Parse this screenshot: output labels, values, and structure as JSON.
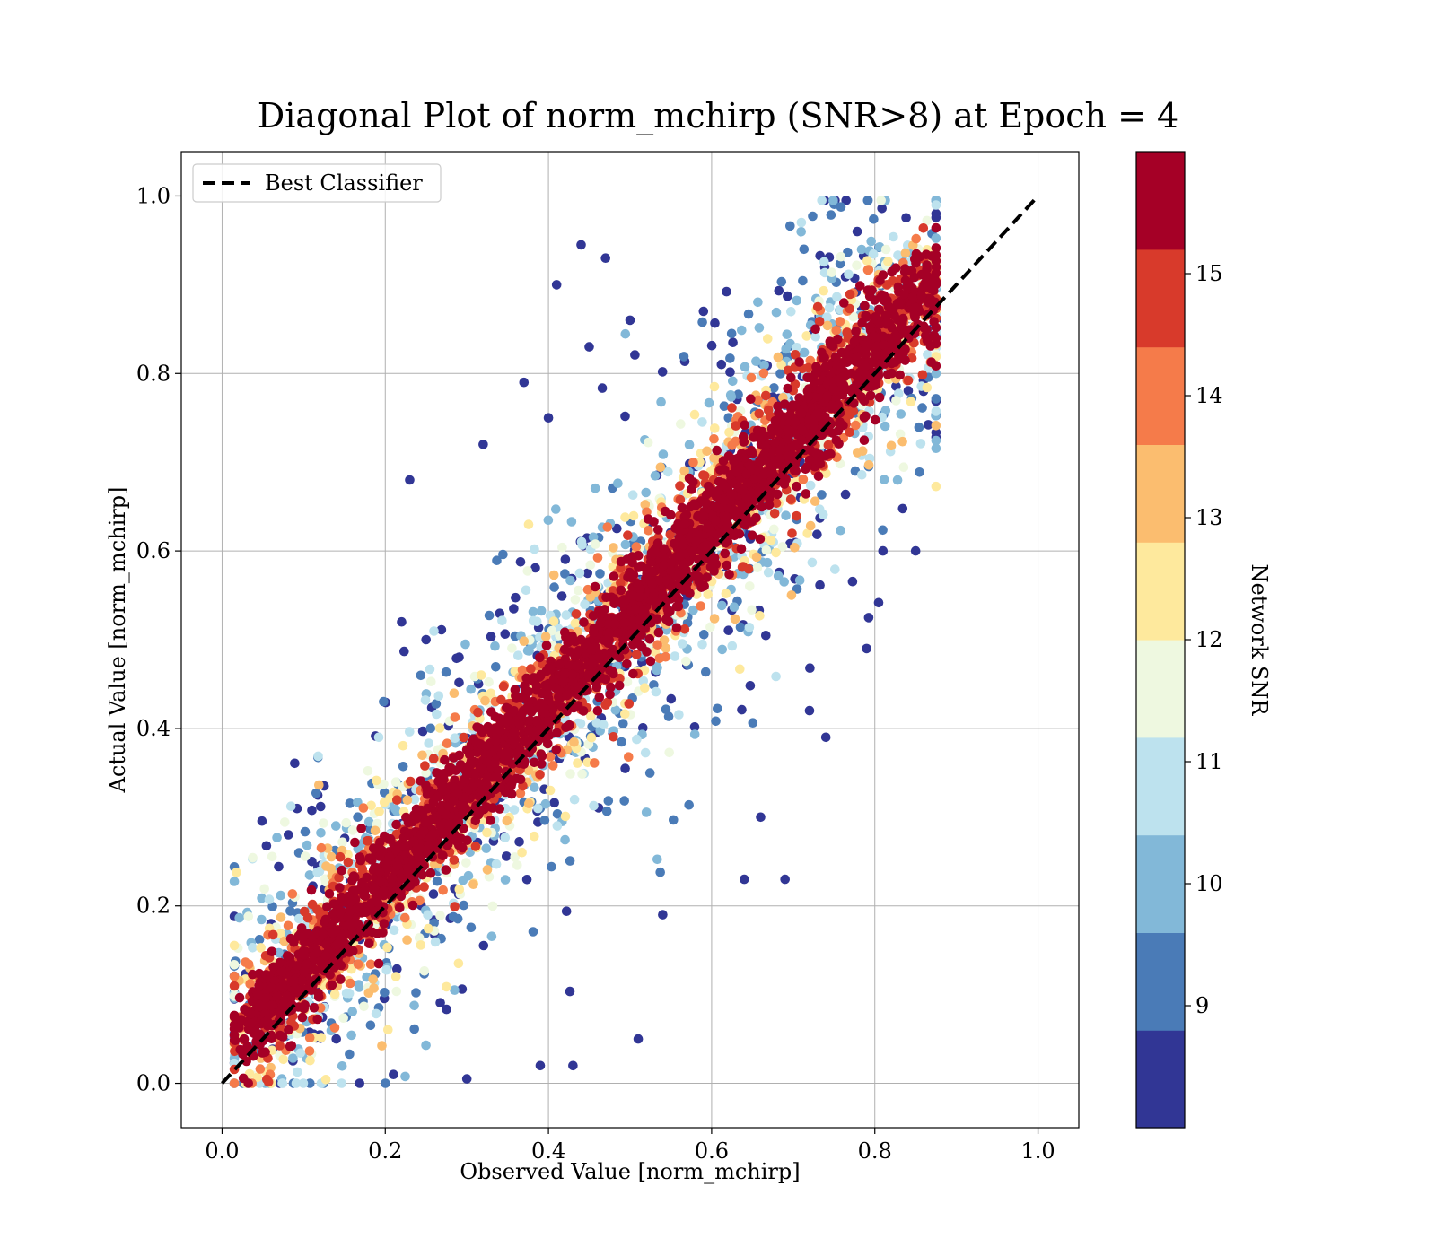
{
  "chart_data": {
    "type": "scatter",
    "title": "Diagonal Plot of norm_mchirp (SNR>8) at Epoch = 4",
    "xlabel": "Observed Value [norm_mchirp]",
    "ylabel": "Actual Value [norm_mchirp]",
    "xlim": [
      -0.05,
      1.05
    ],
    "ylim": [
      -0.05,
      1.05
    ],
    "xticks": [
      0.0,
      0.2,
      0.4,
      0.6,
      0.8,
      1.0
    ],
    "yticks": [
      0.0,
      0.2,
      0.4,
      0.6,
      0.8,
      1.0
    ],
    "xtick_labels": [
      "0.0",
      "0.2",
      "0.4",
      "0.6",
      "0.8",
      "1.0"
    ],
    "ytick_labels": [
      "0.0",
      "0.2",
      "0.4",
      "0.6",
      "0.8",
      "1.0"
    ],
    "grid": true,
    "legend": {
      "position": "top-left",
      "entries": [
        "Best Classifier"
      ]
    },
    "reference_line": {
      "name": "Best Classifier",
      "x": [
        0.0,
        1.0
      ],
      "y": [
        0.0,
        1.0
      ],
      "style": "dashed",
      "color": "#000000"
    },
    "colorbar": {
      "label": "Network SNR",
      "min": 8,
      "max": 16,
      "ticks": [
        9,
        10,
        11,
        12,
        13,
        14,
        15
      ],
      "tick_labels": [
        "9",
        "10",
        "11",
        "12",
        "13",
        "14",
        "15"
      ],
      "colors": [
        "#313695",
        "#4a7bb7",
        "#82b8d8",
        "#bde2ee",
        "#eef8e0",
        "#fee99d",
        "#fbbd6f",
        "#f57b4a",
        "#d83a2b",
        "#a50026"
      ]
    },
    "scatter_description": "points scattered about the diagonal y=x, x range ~0.02-0.87, y range ~0.0-1.0; high-SNR points cluster tightly along the diagonal, low-SNR points spread wider",
    "outliers": [
      [
        0.44,
        0.945
      ],
      [
        0.47,
        0.93
      ],
      [
        0.41,
        0.9
      ],
      [
        0.23,
        0.68
      ],
      [
        0.32,
        0.72
      ],
      [
        0.37,
        0.79
      ],
      [
        0.69,
        0.23
      ],
      [
        0.54,
        0.19
      ],
      [
        0.51,
        0.05
      ],
      [
        0.3,
        0.005
      ],
      [
        0.11,
        0.25
      ],
      [
        0.85,
        0.6
      ],
      [
        0.87,
        0.85
      ],
      [
        0.81,
        0.6
      ],
      [
        0.79,
        0.49
      ],
      [
        0.45,
        0.83
      ],
      [
        0.4,
        0.75
      ],
      [
        0.59,
        0.87
      ],
      [
        0.5,
        0.86
      ],
      [
        0.06,
        0.18
      ],
      [
        0.39,
        0.02
      ],
      [
        0.43,
        0.02
      ],
      [
        0.25,
        0.5
      ],
      [
        0.22,
        0.52
      ],
      [
        0.74,
        0.39
      ],
      [
        0.72,
        0.42
      ],
      [
        0.66,
        0.3
      ],
      [
        0.64,
        0.23
      ],
      [
        0.21,
        0.01
      ],
      [
        0.14,
        0.05
      ]
    ]
  }
}
